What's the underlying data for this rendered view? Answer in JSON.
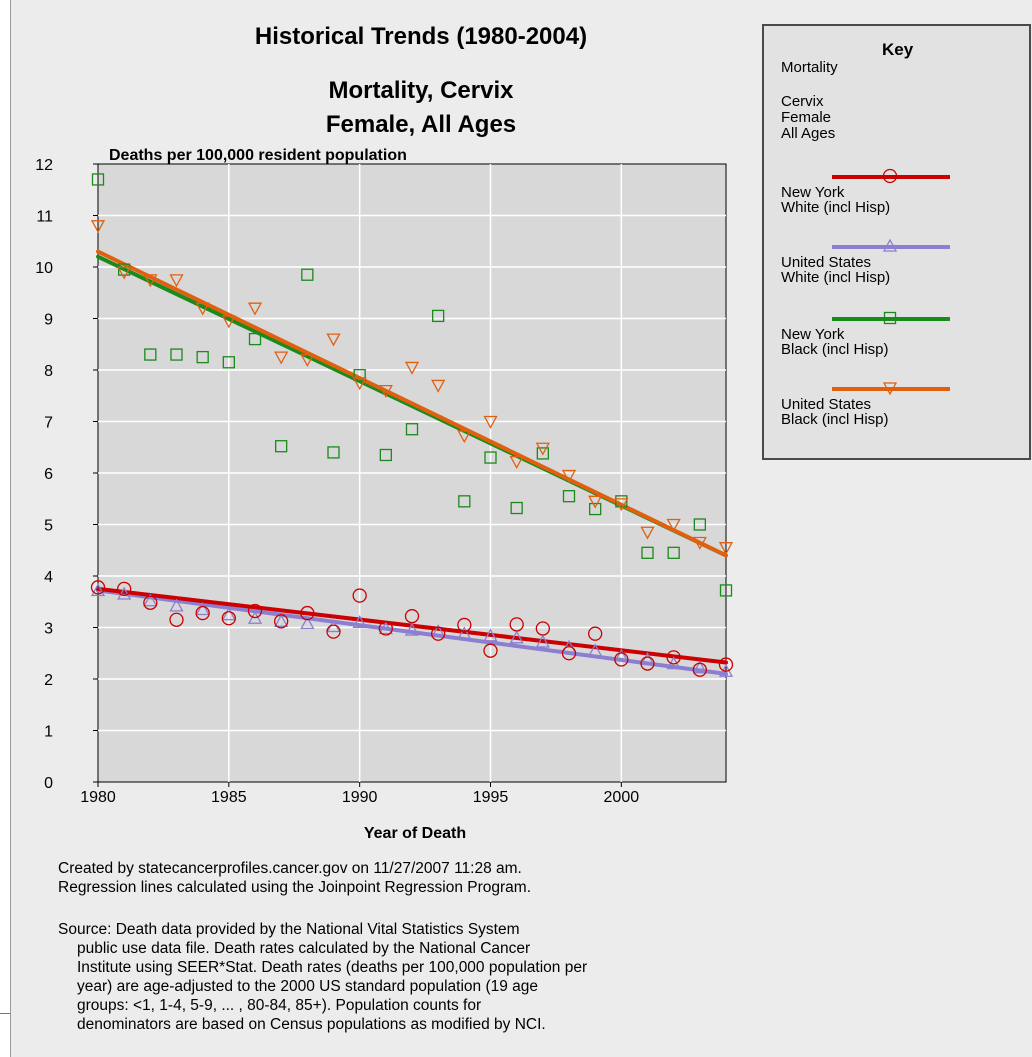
{
  "chart_data": {
    "type": "scatter",
    "title": "Historical Trends (1980-2004)",
    "subtitle_lines": [
      "Mortality, Cervix",
      "Female, All Ages"
    ],
    "ylabel": "Deaths per 100,000 resident population",
    "xlabel": "Year of Death",
    "xlim": [
      1980,
      2004
    ],
    "ylim": [
      0,
      12
    ],
    "x_ticks": [
      1980,
      1985,
      1990,
      1995,
      2000
    ],
    "y_ticks": [
      0,
      1,
      2,
      3,
      4,
      5,
      6,
      7,
      8,
      9,
      10,
      11,
      12
    ],
    "grid": true,
    "legend_position": "right",
    "x": [
      1980,
      1981,
      1982,
      1983,
      1984,
      1985,
      1986,
      1987,
      1988,
      1989,
      1990,
      1991,
      1992,
      1993,
      1994,
      1995,
      1996,
      1997,
      1998,
      1999,
      2000,
      2001,
      2002,
      2003,
      2004
    ],
    "series": [
      {
        "name_lines": [
          "New York",
          "White (incl Hisp)"
        ],
        "color": "#cc0000",
        "marker": "circle",
        "values": [
          3.78,
          3.75,
          3.48,
          3.15,
          3.28,
          3.18,
          3.32,
          3.12,
          3.28,
          2.92,
          3.62,
          2.98,
          3.22,
          2.88,
          3.05,
          2.55,
          3.06,
          2.98,
          2.5,
          2.88,
          2.38,
          2.3,
          2.42,
          2.18,
          2.28
        ],
        "trend": [
          [
            1980,
            3.75
          ],
          [
            2004,
            2.32
          ]
        ]
      },
      {
        "name_lines": [
          "United States",
          "White (incl Hisp)"
        ],
        "color": "#8a7fd0",
        "marker": "triangle",
        "values": [
          3.72,
          3.65,
          3.52,
          3.42,
          3.35,
          3.25,
          3.18,
          3.12,
          3.08,
          3.02,
          3.1,
          2.98,
          2.95,
          2.92,
          2.88,
          2.84,
          2.8,
          2.72,
          2.62,
          2.55,
          2.45,
          2.38,
          2.3,
          2.22,
          2.15
        ],
        "trend": [
          [
            1980,
            3.72
          ],
          [
            2004,
            2.1
          ]
        ]
      },
      {
        "name_lines": [
          "New York",
          "Black (incl Hisp)"
        ],
        "color": "#1a8a1a",
        "marker": "square",
        "values": [
          11.7,
          9.95,
          8.3,
          8.3,
          8.25,
          8.15,
          8.6,
          6.52,
          9.85,
          6.4,
          7.9,
          6.35,
          6.85,
          9.05,
          5.45,
          6.3,
          5.32,
          6.38,
          5.55,
          5.3,
          5.45,
          4.45,
          4.45,
          5.0,
          3.72
        ],
        "trend": [
          [
            1980,
            10.2
          ],
          [
            2004,
            4.4
          ]
        ]
      },
      {
        "name_lines": [
          "United States",
          "Black (incl Hisp)"
        ],
        "color": "#e06010",
        "marker": "triangle-down",
        "values": [
          10.8,
          9.9,
          9.75,
          9.75,
          9.2,
          8.95,
          9.2,
          8.25,
          8.2,
          8.6,
          7.75,
          7.6,
          8.05,
          7.7,
          6.72,
          7.0,
          6.22,
          6.48,
          5.95,
          5.45,
          5.4,
          4.85,
          5.0,
          4.65,
          4.55
        ],
        "trend": [
          [
            1980,
            10.3
          ],
          [
            2004,
            4.4
          ]
        ]
      }
    ]
  },
  "key": {
    "title": "Key",
    "lines": [
      "Mortality",
      "Cervix",
      "Female",
      "All Ages"
    ]
  },
  "notes": {
    "created": [
      "Created by statecancerprofiles.cancer.gov on 11/27/2007 11:28 am.",
      "Regression lines calculated using the Joinpoint Regression Program."
    ],
    "source": [
      "Source: Death data provided by the National Vital Statistics System",
      "public use data file. Death rates calculated by the National Cancer",
      "Institute using SEER*Stat.  Death rates (deaths per 100,000 population per",
      "year) are age-adjusted to the 2000 US standard population (19 age",
      "groups: <1, 1-4, 5-9, ... , 80-84, 85+). Population counts for",
      "denominators are based on Census populations as modified by NCI."
    ]
  }
}
